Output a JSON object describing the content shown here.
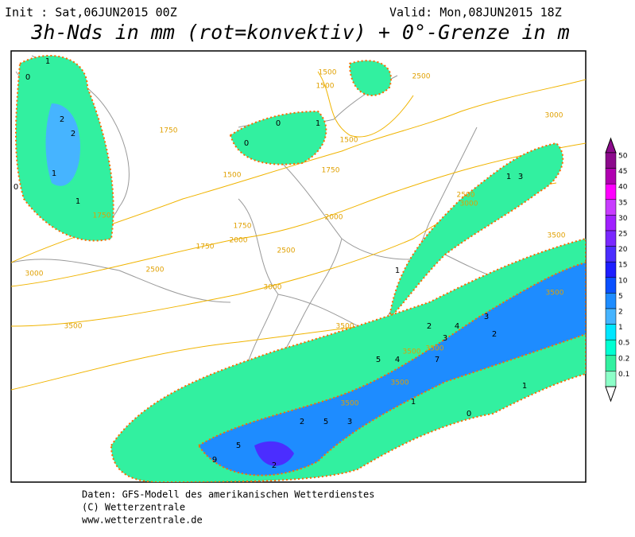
{
  "header": {
    "init": "Init : Sat,06JUN2015 00Z",
    "valid": "Valid: Mon,08JUN2015 18Z",
    "title": "3h-Nds in mm (rot=konvektiv) + 0°-Grenze in m"
  },
  "legend": {
    "levels": [
      50,
      45,
      40,
      35,
      30,
      25,
      20,
      15,
      10,
      5,
      2,
      1,
      0.5,
      0.2,
      0.1
    ],
    "colors": [
      "#8c0a8c",
      "#b000b0",
      "#ff00ff",
      "#c83cff",
      "#a020ff",
      "#7a28ff",
      "#4b2dff",
      "#1e1eff",
      "#0a50ff",
      "#1e8cff",
      "#46b4ff",
      "#00e6ff",
      "#00ffd2",
      "#32f0a0",
      "#8cffc8"
    ]
  },
  "contours": [
    1750,
    1500,
    1500,
    1500,
    1750,
    1750,
    1500,
    1750,
    2000,
    1750,
    2000,
    2500,
    2500,
    3000,
    3000,
    2500,
    2500,
    3000,
    3000,
    3500,
    3500,
    3500,
    3500,
    3500,
    3500,
    3500,
    3500
  ],
  "precip": [
    0,
    1,
    2,
    2,
    1,
    0,
    1,
    0,
    0,
    1,
    3,
    1,
    1,
    2,
    3,
    4,
    3,
    2,
    5,
    7,
    4,
    9,
    5,
    2,
    1,
    0,
    1,
    3,
    5,
    2
  ],
  "footer": [
    "Daten: GFS-Modell des amerikanischen Wetterdienstes",
    "(C) Wetterzentrale",
    "www.wetterzentrale.de"
  ]
}
